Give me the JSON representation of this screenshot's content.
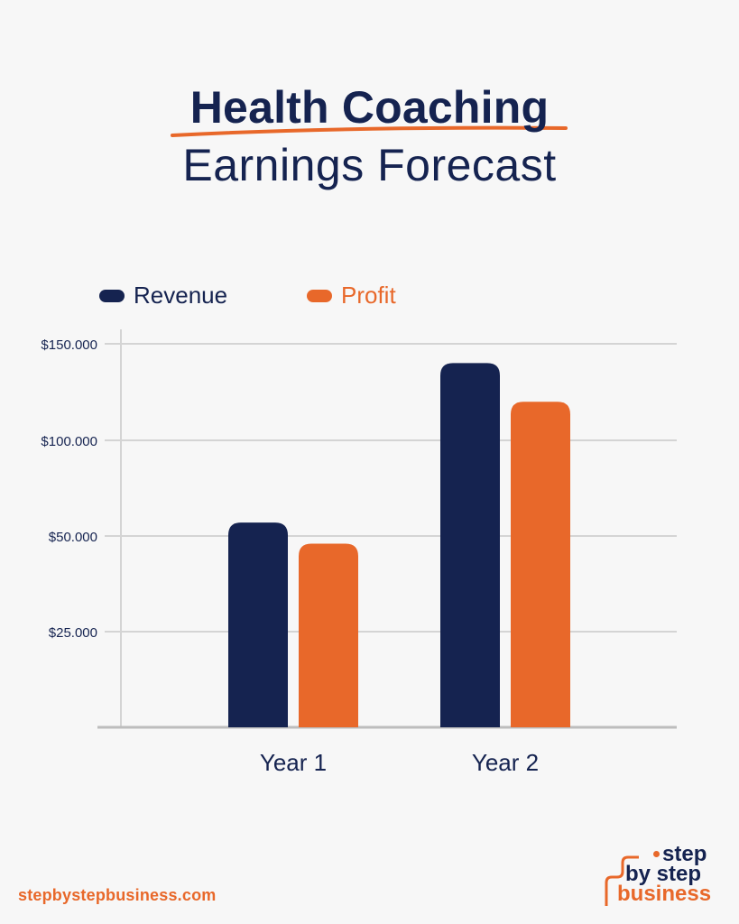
{
  "title": {
    "line1": "Health Coaching",
    "line2": "Earnings Forecast"
  },
  "colors": {
    "navy": "#152350",
    "orange": "#e8682a",
    "grid": "#d4d4d4",
    "axis": "#bdbdbd",
    "background": "#f7f7f7"
  },
  "chart_data": {
    "type": "bar",
    "categories": [
      "Year 1",
      "Year 2"
    ],
    "series": [
      {
        "name": "Revenue",
        "values": [
          57000,
          140000
        ],
        "color": "#152350"
      },
      {
        "name": "Profit",
        "values": [
          48000,
          120000
        ],
        "color": "#e8682a"
      }
    ],
    "yticks": [
      {
        "value": 25000,
        "label": "$25.000"
      },
      {
        "value": 50000,
        "label": "$50.000"
      },
      {
        "value": 100000,
        "label": "$100.000"
      },
      {
        "value": 150000,
        "label": "$150.000"
      }
    ],
    "ylim": [
      0,
      150000
    ],
    "grid": true,
    "legend_position": "top-left"
  },
  "footer": {
    "url": "stepbystepbusiness.com",
    "logo": {
      "line1": "step",
      "line2": "by step",
      "line3": "business"
    }
  }
}
